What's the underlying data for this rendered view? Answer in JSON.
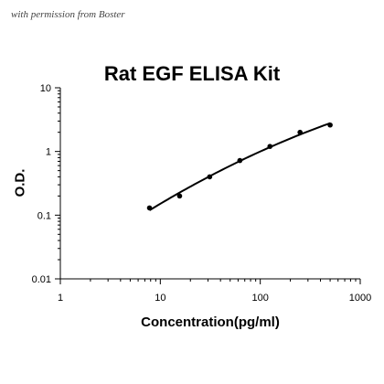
{
  "watermark": "with permission from Boster",
  "chart_data": {
    "type": "scatter",
    "title": "Rat EGF ELISA Kit",
    "xlabel": "Concentration(pg/ml)",
    "ylabel": "O.D.",
    "x_scale": "log",
    "y_scale": "log",
    "xlim": [
      1,
      1000
    ],
    "ylim": [
      0.01,
      10
    ],
    "x_ticks": [
      "1",
      "10",
      "100",
      "1000"
    ],
    "y_ticks": [
      "10",
      "1",
      "0.1",
      "0.01"
    ],
    "grid": false,
    "series": [
      {
        "x": [
          7.8,
          15.6,
          31.2,
          62.5,
          125,
          250,
          500
        ],
        "y": [
          0.13,
          0.2,
          0.4,
          0.72,
          1.2,
          2.0,
          2.6
        ]
      }
    ],
    "fit_curve": true,
    "colors": {
      "line": "#000000",
      "marker": "#000000"
    }
  }
}
